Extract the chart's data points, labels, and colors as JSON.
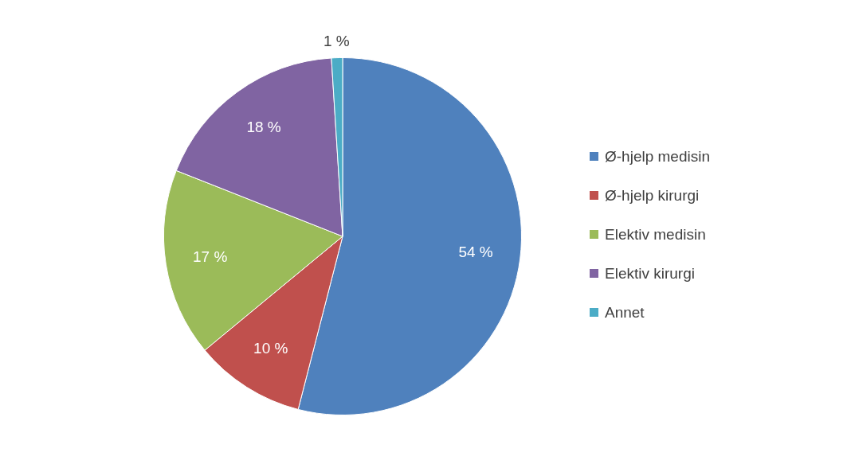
{
  "chart_data": {
    "type": "pie",
    "categories": [
      "Ø-hjelp medisin",
      "Ø-hjelp kirurgi",
      "Elektiv medisin",
      "Elektiv kirurgi",
      "Annet"
    ],
    "values": [
      54,
      10,
      17,
      18,
      1
    ],
    "colors": [
      "#4f81bd",
      "#c0504d",
      "#9bbb59",
      "#8064a2",
      "#4bacc6"
    ],
    "value_labels": [
      "54 %",
      "10 %",
      "17 %",
      "18 %",
      "1 %"
    ],
    "legend": "right"
  }
}
